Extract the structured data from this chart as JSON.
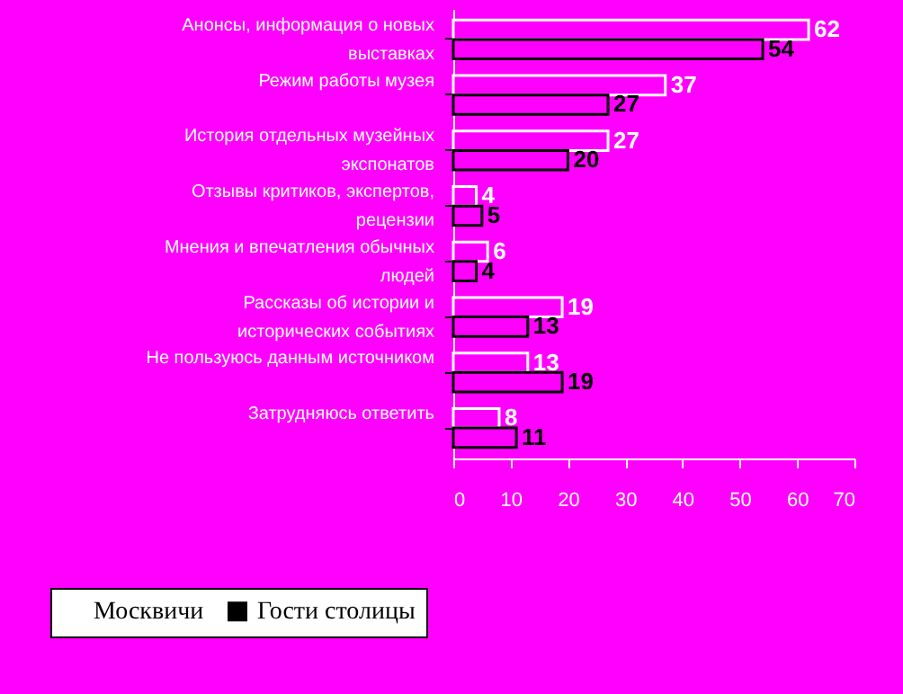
{
  "chart_data": {
    "type": "bar",
    "orientation": "horizontal",
    "categories": [
      "Анонсы, информация о новых выставках",
      "Режим работы музея",
      "История отдельных музейных экспонатов",
      "Отзывы критиков, экспертов, рецензии",
      "Мнения и впечатления обычных людей",
      "Рассказы об истории и исторических событиях",
      "Не пользуюсь данным источником",
      "Затрудняюсь ответить"
    ],
    "series": [
      {
        "name": "Москвичи",
        "color": "#ffffff",
        "values": [
          62,
          37,
          27,
          4,
          6,
          19,
          13,
          8
        ]
      },
      {
        "name": "Гости столицы",
        "color": "#000000",
        "values": [
          54,
          27,
          20,
          5,
          4,
          13,
          19,
          11
        ]
      }
    ],
    "xlim": [
      0,
      70
    ],
    "xticks": [
      0,
      10,
      20,
      30,
      40,
      50,
      60,
      70
    ],
    "data_labels": true,
    "legend": "bottom left",
    "grid": false
  }
}
